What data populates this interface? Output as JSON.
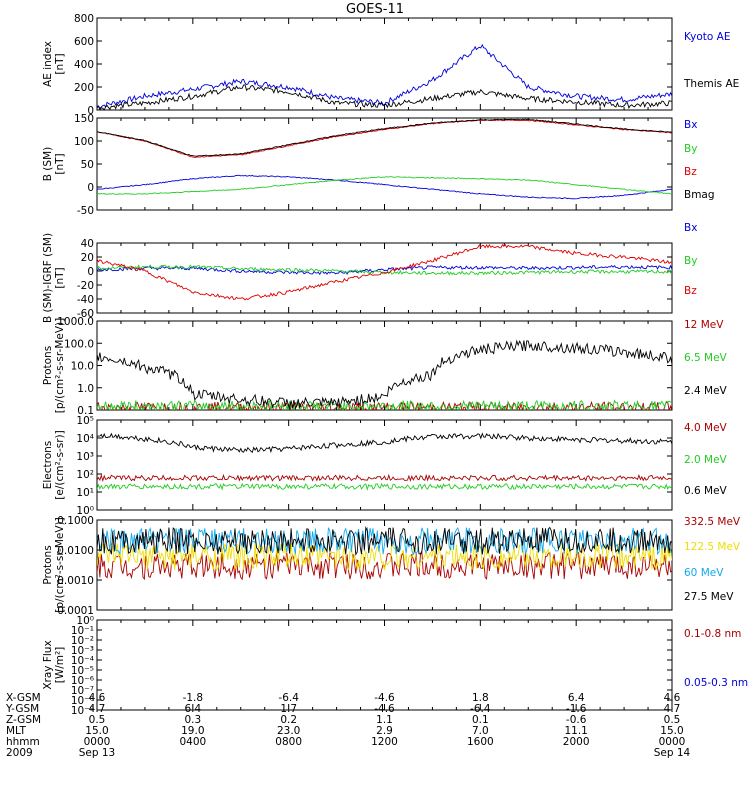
{
  "title": "GOES-11",
  "colors": {
    "black": "#000000",
    "blue": "#0000dd",
    "red": "#dd0000",
    "green": "#22cc22",
    "darkred": "#aa0000",
    "cyan": "#11aaee",
    "yellow": "#eedd00"
  },
  "chart_data": [
    {
      "type": "line",
      "id": "ae",
      "ylabel": [
        "AE index",
        "[nT]"
      ],
      "ylim": [
        0,
        800
      ],
      "yticks": [
        "0",
        "200",
        "400",
        "600",
        "800"
      ],
      "x": [
        0,
        2,
        4,
        6,
        8,
        10,
        12,
        14,
        16,
        18,
        20,
        22,
        24
      ],
      "series": [
        {
          "name": "Kyoto AE",
          "color": "blue",
          "values": [
            30,
            120,
            180,
            250,
            200,
            100,
            60,
            260,
            560,
            200,
            120,
            90,
            140
          ]
        },
        {
          "name": "Themis AE",
          "color": "black",
          "values": [
            20,
            60,
            120,
            200,
            160,
            60,
            40,
            100,
            160,
            100,
            70,
            40,
            60
          ]
        }
      ]
    },
    {
      "type": "line",
      "id": "bsm",
      "ylabel": [
        "B (SM)",
        "[nT]"
      ],
      "ylim": [
        -50,
        150
      ],
      "yticks": [
        "-50",
        "0",
        "50",
        "100",
        "150"
      ],
      "x": [
        0,
        2,
        4,
        6,
        8,
        10,
        12,
        14,
        16,
        18,
        20,
        22,
        24
      ],
      "series": [
        {
          "name": "Bx",
          "color": "blue",
          "values": [
            -5,
            5,
            18,
            25,
            22,
            15,
            5,
            -5,
            -15,
            -22,
            -25,
            -18,
            -5
          ]
        },
        {
          "name": "By",
          "color": "green",
          "values": [
            -15,
            -15,
            -10,
            -5,
            5,
            15,
            22,
            20,
            18,
            15,
            5,
            -5,
            -15
          ]
        },
        {
          "name": "Bz",
          "color": "red",
          "values": [
            120,
            100,
            65,
            70,
            90,
            110,
            125,
            138,
            145,
            145,
            135,
            125,
            118
          ]
        },
        {
          "name": "Bmag",
          "color": "black",
          "values": [
            120,
            101,
            67,
            72,
            92,
            112,
            127,
            139,
            146,
            147,
            137,
            126,
            119
          ]
        }
      ]
    },
    {
      "type": "line",
      "id": "dbsm",
      "ylabel": [
        "B (SM)-IGRF (SM)",
        "[nT]"
      ],
      "ylim": [
        -60,
        40
      ],
      "yticks": [
        "-60",
        "-40",
        "-20",
        "0",
        "20",
        "40"
      ],
      "x": [
        0,
        2,
        4,
        6,
        8,
        10,
        12,
        14,
        16,
        18,
        20,
        22,
        24
      ],
      "series": [
        {
          "name": "Bx",
          "color": "blue",
          "values": [
            2,
            4,
            4,
            0,
            -2,
            -3,
            2,
            5,
            5,
            4,
            5,
            6,
            5
          ]
        },
        {
          "name": "By",
          "color": "green",
          "values": [
            4,
            6,
            6,
            3,
            2,
            0,
            -2,
            -3,
            -3,
            -2,
            -1,
            -1,
            -1
          ]
        },
        {
          "name": "Bz",
          "color": "red",
          "values": [
            15,
            0,
            -30,
            -40,
            -30,
            -15,
            -2,
            15,
            35,
            35,
            25,
            20,
            12
          ]
        }
      ]
    },
    {
      "type": "line",
      "id": "protons1",
      "ylabel": [
        "Protons",
        "[p/(cm²-s-sr-MeV)]"
      ],
      "yscale": "log",
      "ylim": [
        0.1,
        1000
      ],
      "yticks": [
        "0.1",
        "1.0",
        "10.0",
        "100.0",
        "1000.0"
      ],
      "x": [
        0,
        2,
        4,
        6,
        8,
        10,
        12,
        14,
        16,
        18,
        20,
        22,
        24
      ],
      "series": [
        {
          "name": "12 MeV",
          "color": "darkred",
          "values": [
            0.13,
            0.13,
            0.13,
            0.13,
            0.13,
            0.13,
            0.13,
            0.13,
            0.13,
            0.13,
            0.13,
            0.13,
            0.13
          ]
        },
        {
          "name": "6.5 MeV",
          "color": "green",
          "values": [
            0.15,
            0.15,
            0.15,
            0.15,
            0.15,
            0.15,
            0.15,
            0.15,
            0.15,
            0.15,
            0.15,
            0.15,
            0.15
          ]
        },
        {
          "name": "2.4 MeV",
          "color": "black",
          "values": [
            25,
            8,
            0.5,
            0.3,
            0.2,
            0.2,
            0.4,
            4,
            50,
            80,
            60,
            40,
            20
          ]
        }
      ]
    },
    {
      "type": "line",
      "id": "electrons",
      "ylabel": [
        "Electrons",
        "[e/(cm²-s-sr)]"
      ],
      "yscale": "log",
      "ylim": [
        1,
        100000
      ],
      "yticks": [
        "10⁰",
        "10¹",
        "10²",
        "10³",
        "10⁴",
        "10⁵"
      ],
      "x": [
        0,
        2,
        4,
        6,
        8,
        10,
        12,
        14,
        16,
        18,
        20,
        22,
        24
      ],
      "series": [
        {
          "name": "4.0 MeV",
          "color": "darkred",
          "values": [
            60,
            60,
            60,
            60,
            60,
            60,
            60,
            60,
            60,
            60,
            60,
            60,
            60
          ]
        },
        {
          "name": "2.0 MeV",
          "color": "green",
          "values": [
            20,
            20,
            20,
            20,
            20,
            20,
            20,
            20,
            20,
            20,
            20,
            20,
            20
          ]
        },
        {
          "name": "0.6 MeV",
          "color": "black",
          "values": [
            15000,
            9000,
            3000,
            2000,
            2500,
            4000,
            6000,
            12000,
            13000,
            10000,
            8000,
            7000,
            6000
          ]
        }
      ]
    },
    {
      "type": "line",
      "id": "protons2",
      "ylabel": [
        "Protons",
        "[p/(cm²-s-sr-MeV)]"
      ],
      "yscale": "log",
      "ylim": [
        0.0001,
        0.1
      ],
      "yticks": [
        "0.0001",
        "0.0010",
        "0.0100",
        "0.1000"
      ],
      "x": [
        0,
        2,
        4,
        6,
        8,
        10,
        12,
        14,
        16,
        18,
        20,
        22,
        24
      ],
      "series": [
        {
          "name": "332.5 MeV",
          "color": "darkred",
          "values": [
            0.003,
            0.003,
            0.003,
            0.003,
            0.003,
            0.003,
            0.003,
            0.003,
            0.003,
            0.003,
            0.003,
            0.003,
            0.003
          ]
        },
        {
          "name": "122.5 MeV",
          "color": "yellow",
          "values": [
            0.006,
            0.006,
            0.006,
            0.006,
            0.006,
            0.006,
            0.006,
            0.006,
            0.006,
            0.006,
            0.006,
            0.006,
            0.006
          ]
        },
        {
          "name": "60 MeV",
          "color": "cyan",
          "values": [
            0.02,
            0.02,
            0.02,
            0.02,
            0.02,
            0.02,
            0.02,
            0.02,
            0.02,
            0.02,
            0.02,
            0.02,
            0.02
          ]
        },
        {
          "name": "27.5 MeV",
          "color": "black",
          "values": [
            0.02,
            0.02,
            0.02,
            0.02,
            0.02,
            0.02,
            0.02,
            0.02,
            0.02,
            0.02,
            0.02,
            0.02,
            0.02
          ]
        }
      ]
    },
    {
      "type": "line",
      "id": "xray",
      "ylabel": [
        "Xray Flux",
        "[W/m²]"
      ],
      "yscale": "log",
      "ylim": [
        1e-09,
        1
      ],
      "yticks": [
        "10⁻⁹",
        "10⁻⁸",
        "10⁻⁷",
        "10⁻⁶",
        "10⁻⁵",
        "10⁻⁴",
        "10⁻³",
        "10⁻²",
        "10⁻¹",
        "10⁰"
      ],
      "x": [],
      "series": [
        {
          "name": "0.1-0.8 nm",
          "color": "darkred",
          "values": []
        },
        {
          "name": "0.05-0.3 nm",
          "color": "blue",
          "values": []
        }
      ]
    }
  ],
  "ephemeris": {
    "rows": [
      {
        "label": "X-GSM",
        "values": [
          "4.6",
          "-1.8",
          "-6.4",
          "-4.6",
          "1.8",
          "6.4",
          "4.6"
        ]
      },
      {
        "label": "Y-GSM",
        "values": [
          "4.7",
          "6.4",
          "1.7",
          "-4.6",
          "-6.4",
          "-1.6",
          "4.7"
        ]
      },
      {
        "label": "Z-GSM",
        "values": [
          "0.5",
          "0.3",
          "0.2",
          "1.1",
          "0.1",
          "-0.6",
          "0.5"
        ]
      },
      {
        "label": "MLT",
        "values": [
          "15.0",
          "19.0",
          "23.0",
          "2.9",
          "7.0",
          "11.1",
          "15.0"
        ]
      },
      {
        "label": "hhmm",
        "values": [
          "0000",
          "0400",
          "0800",
          "1200",
          "1600",
          "2000",
          "0000"
        ]
      }
    ],
    "year": "2009",
    "date_start": "Sep 13",
    "date_end": "Sep 14"
  }
}
